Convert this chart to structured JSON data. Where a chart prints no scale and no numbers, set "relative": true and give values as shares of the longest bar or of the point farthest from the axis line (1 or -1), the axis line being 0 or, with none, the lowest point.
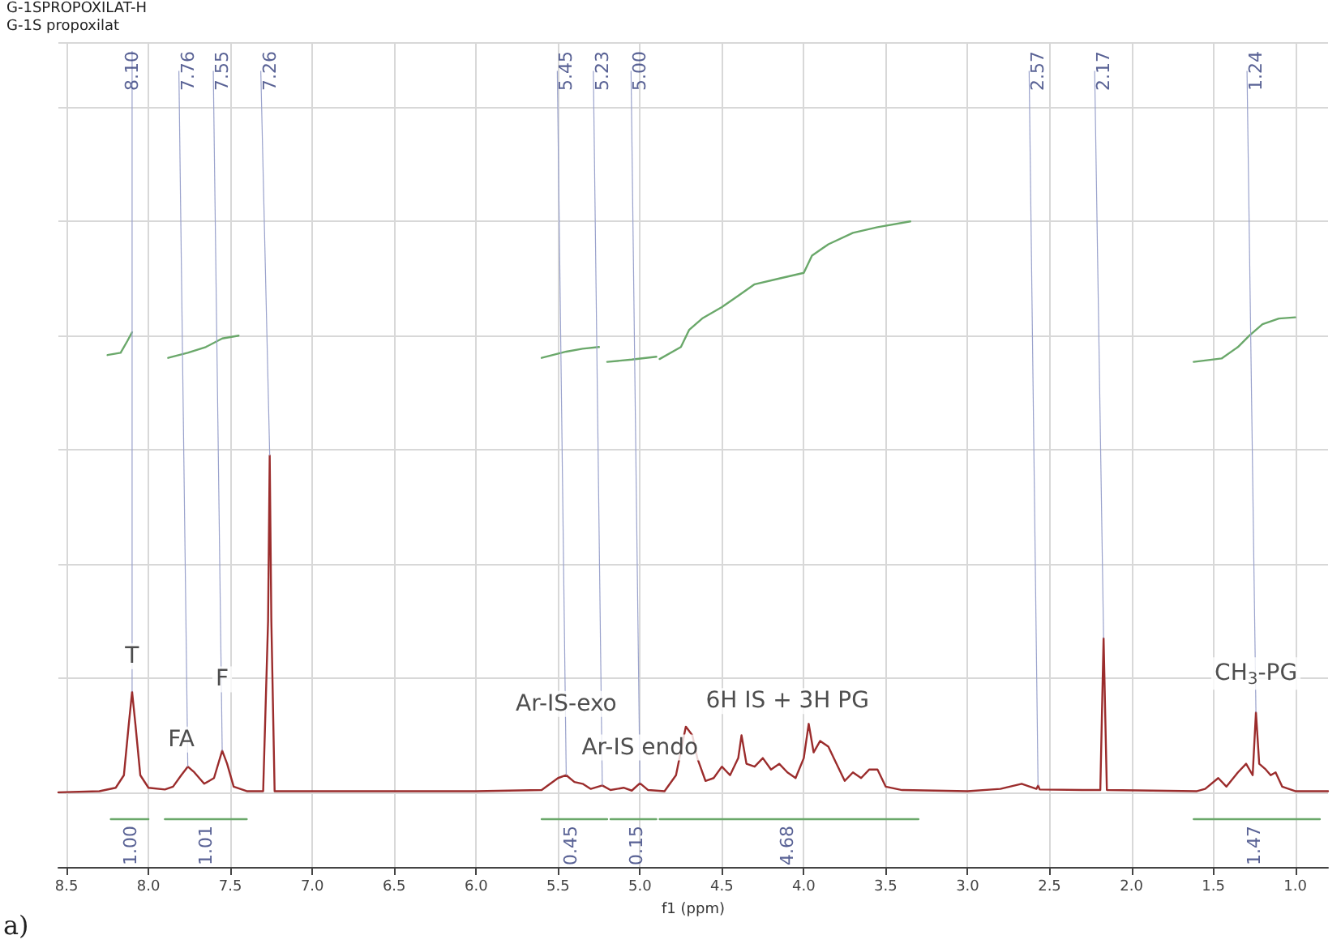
{
  "chart_data": {
    "type": "line",
    "xlabel": "f1 (ppm)",
    "relative": true,
    "grid": true,
    "marker": "none",
    "line_style": "solid",
    "xlim": [
      8.55,
      0.8
    ],
    "xticks": [
      {
        "value": 8.5,
        "label": "8.5"
      },
      {
        "value": 8,
        "label": "8.0"
      },
      {
        "value": 7.5,
        "label": "7.5"
      },
      {
        "value": 7,
        "label": "7.0"
      },
      {
        "value": 6.5,
        "label": "6.5"
      },
      {
        "value": 6,
        "label": "6.0"
      },
      {
        "value": 5.5,
        "label": "5.5"
      },
      {
        "value": 5,
        "label": "5.0"
      },
      {
        "value": 4.5,
        "label": "4.5"
      },
      {
        "value": 4,
        "label": "4.0"
      },
      {
        "value": 3.5,
        "label": "3.5"
      },
      {
        "value": 3,
        "label": "3.0"
      },
      {
        "value": 2.5,
        "label": "2.5"
      },
      {
        "value": 2,
        "label": "2.0"
      },
      {
        "value": 1.5,
        "label": "1.5"
      },
      {
        "value": 1,
        "label": "1.0"
      }
    ],
    "series": [
      {
        "color": "#9b2c2c",
        "x": [
          8.55,
          8.3,
          8.2,
          8.15,
          8.12,
          8.1,
          8.08,
          8.05,
          8.0,
          7.9,
          7.85,
          7.8,
          7.76,
          7.72,
          7.66,
          7.6,
          7.55,
          7.52,
          7.48,
          7.4,
          7.3,
          7.27,
          7.26,
          7.25,
          7.23,
          6,
          5.6,
          5.5,
          5.45,
          5.4,
          5.35,
          5.3,
          5.23,
          5.18,
          5.1,
          5.05,
          5,
          4.95,
          4.85,
          4.78,
          4.72,
          4.68,
          4.65,
          4.6,
          4.55,
          4.5,
          4.45,
          4.4,
          4.38,
          4.35,
          4.3,
          4.25,
          4.2,
          4.15,
          4.1,
          4.05,
          4,
          3.97,
          3.94,
          3.9,
          3.85,
          3.8,
          3.75,
          3.7,
          3.65,
          3.6,
          3.55,
          3.5,
          3.4,
          3,
          2.8,
          2.67,
          2.58,
          2.57,
          2.56,
          2.3,
          2.19,
          2.17,
          2.15,
          1.6,
          1.55,
          1.47,
          1.42,
          1.35,
          1.3,
          1.26,
          1.24,
          1.22,
          1.18,
          1.15,
          1.12,
          1.08,
          1,
          0.8
        ],
        "values": [
          0,
          0.002,
          0.008,
          0.03,
          0.12,
          0.176,
          0.12,
          0.03,
          0.008,
          0.005,
          0.01,
          0.03,
          0.045,
          0.035,
          0.015,
          0.025,
          0.073,
          0.05,
          0.01,
          0.002,
          0.002,
          0.3,
          0.59,
          0.3,
          0.002,
          0.002,
          0.004,
          0.025,
          0.03,
          0.018,
          0.015,
          0.006,
          0.012,
          0.004,
          0.008,
          0.003,
          0.016,
          0.004,
          0.002,
          0.03,
          0.115,
          0.1,
          0.06,
          0.02,
          0.025,
          0.045,
          0.03,
          0.06,
          0.1,
          0.05,
          0.045,
          0.06,
          0.04,
          0.05,
          0.035,
          0.025,
          0.06,
          0.12,
          0.07,
          0.09,
          0.08,
          0.05,
          0.02,
          0.035,
          0.025,
          0.04,
          0.04,
          0.01,
          0.004,
          0.002,
          0.006,
          0.015,
          0.006,
          0.012,
          0.005,
          0.004,
          0.004,
          0.27,
          0.004,
          0.002,
          0.006,
          0.025,
          0.01,
          0.035,
          0.05,
          0.03,
          0.14,
          0.05,
          0.04,
          0.03,
          0.035,
          0.01,
          0.002,
          0.002
        ]
      },
      {
        "color": "#6aa86a",
        "x": [
          8.25,
          8.17,
          8.13,
          8.1
        ],
        "values": [
          0.766,
          0.77,
          0.79,
          0.806
        ]
      },
      {
        "color": "#6aa86a",
        "x": [
          7.88,
          7.76,
          7.65,
          7.55,
          7.45
        ],
        "values": [
          0.761,
          0.77,
          0.78,
          0.795,
          0.8
        ]
      },
      {
        "color": "#6aa86a",
        "x": [
          5.6,
          5.45,
          5.35,
          5.25
        ],
        "values": [
          0.761,
          0.772,
          0.777,
          0.78
        ]
      },
      {
        "color": "#6aa86a",
        "x": [
          5.2,
          5.05,
          4.9
        ],
        "values": [
          0.754,
          0.758,
          0.763
        ]
      },
      {
        "color": "#6aa86a",
        "x": [
          4.88,
          4.75,
          4.7,
          4.62,
          4.5,
          4.4,
          4.3,
          4.15,
          4,
          3.95,
          3.85,
          3.7,
          3.55,
          3.35
        ],
        "values": [
          0.759,
          0.78,
          0.81,
          0.83,
          0.85,
          0.87,
          0.89,
          0.9,
          0.91,
          0.94,
          0.96,
          0.98,
          0.99,
          1
        ]
      },
      {
        "color": "#6aa86a",
        "x": [
          1.62,
          1.45,
          1.35,
          1.28,
          1.2,
          1.1,
          1
        ],
        "values": [
          0.754,
          0.76,
          0.78,
          0.8,
          0.82,
          0.83,
          0.832
        ]
      },
      {
        "color": "#6aa86a",
        "x": [
          8.23,
          8
        ],
        "values": [
          -0.047,
          -0.047
        ]
      },
      {
        "color": "#6aa86a",
        "x": [
          7.9,
          7.4
        ],
        "values": [
          -0.047,
          -0.047
        ]
      },
      {
        "color": "#6aa86a",
        "x": [
          5.6,
          5.2
        ],
        "values": [
          -0.047,
          -0.047
        ]
      },
      {
        "color": "#6aa86a",
        "x": [
          5.18,
          4.9
        ],
        "values": [
          -0.047,
          -0.047
        ]
      },
      {
        "color": "#6aa86a",
        "x": [
          4.88,
          3.3
        ],
        "values": [
          -0.047,
          -0.047
        ]
      },
      {
        "color": "#6aa86a",
        "x": [
          1.62,
          0.85
        ],
        "values": [
          -0.047,
          -0.047
        ]
      }
    ],
    "annotations": [
      "G-1SPROPOXILAT-H",
      "G-1S propoxilat",
      "a)",
      {
        "text": "8.10",
        "x": 8.1,
        "y": 0.176
      },
      {
        "text": "7.76",
        "x": 7.76,
        "y": 0.045
      },
      {
        "text": "7.55",
        "x": 7.55,
        "y": 0.073
      },
      {
        "text": "7.26",
        "x": 7.26,
        "y": 0.59
      },
      {
        "text": "5.45",
        "x": 5.45,
        "y": 0.03
      },
      {
        "text": "5.23",
        "x": 5.23,
        "y": 0.012
      },
      {
        "text": "5.00",
        "x": 5,
        "y": 0.016
      },
      {
        "text": "2.57",
        "x": 2.57,
        "y": 0.012
      },
      {
        "text": "2.17",
        "x": 2.17,
        "y": 0.27
      },
      {
        "text": "1.24",
        "x": 1.24,
        "y": 0.14
      },
      {
        "text": "1.00",
        "x": 8.11,
        "y": -0.047
      },
      {
        "text": "1.01",
        "x": 7.65,
        "y": -0.047
      },
      {
        "text": "0.45",
        "x": 5.42,
        "y": -0.047
      },
      {
        "text": "0.15",
        "x": 5.02,
        "y": -0.047
      },
      {
        "text": "4.68",
        "x": 4.1,
        "y": -0.047
      },
      {
        "text": "1.47",
        "x": 1.25,
        "y": -0.047
      },
      {
        "text": "T",
        "x": 8.1,
        "y": 0.176
      },
      {
        "text": "F",
        "x": 7.55,
        "y": 0.073
      },
      {
        "text": "FA",
        "x": 7.8,
        "y": 0.03
      },
      {
        "text": "Ar-IS-exo",
        "x": 5.45,
        "y": 0.03
      },
      {
        "text": "Ar-IS endo",
        "x": 5,
        "y": 0.016
      },
      {
        "text": "6H IS + 3H PG",
        "x": 4.1,
        "y": 0.035
      },
      {
        "text": "CH$_{3}$-PG",
        "x": 1.24,
        "y": 0.14
      }
    ]
  }
}
